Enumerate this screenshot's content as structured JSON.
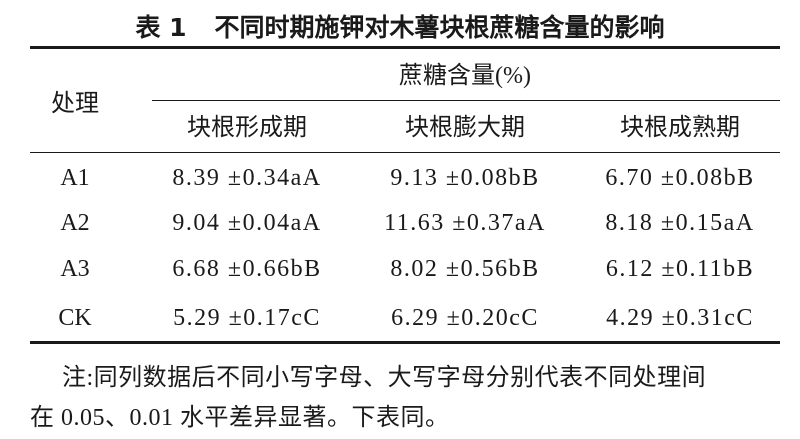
{
  "header": {
    "label": "表 1",
    "title": "不同时期施钾对木薯块根蔗糖含量的影响"
  },
  "table": {
    "header": {
      "treatment": "处理",
      "group": "蔗糖含量(%)",
      "columns": [
        "块根形成期",
        "块根膨大期",
        "块根成熟期"
      ]
    },
    "rows": [
      [
        "A1",
        "8.39 ±0.34aA",
        "9.13 ±0.08bB",
        "6.70 ±0.08bB"
      ],
      [
        "A2",
        "9.04 ±0.04aA",
        "11.63 ±0.37aA",
        "8.18 ±0.15aA"
      ],
      [
        "A3",
        "6.68 ±0.66bB",
        "8.02 ±0.56bB",
        "6.12 ±0.11bB"
      ],
      [
        "CK",
        "5.29 ±0.17cC",
        "6.29 ±0.20cC",
        "4.29 ±0.31cC"
      ]
    ]
  },
  "note": {
    "lines": [
      "注:同列数据后不同小写字母、大写字母分别代表不同处理间",
      "在 0.05、0.01 水平差异显著。下表同。"
    ]
  }
}
